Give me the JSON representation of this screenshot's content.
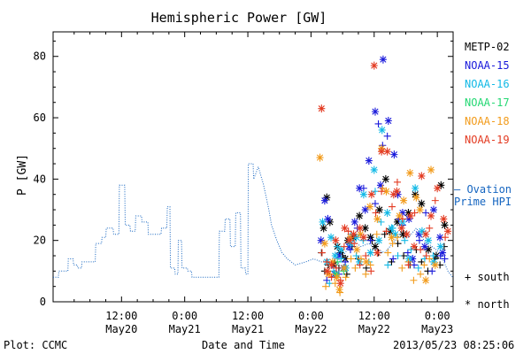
{
  "colors": {
    "METP-02": "#000000",
    "NOAA-15": "#1a1adb",
    "NOAA-16": "#12b9e6",
    "NOAA-17": "#24d873",
    "NOAA-18": "#f29b1b",
    "NOAA-19": "#e33b22",
    "ovation": "#1565c0"
  },
  "chart_data": {
    "type": "scatter",
    "title": "Hemispheric Power [GW]",
    "xlabel": "Date and Time",
    "ylabel": "P [GW]",
    "ylim": [
      0,
      88
    ],
    "xlim_hours": [
      -13,
      63
    ],
    "y_ticks": [
      0,
      20,
      40,
      60,
      80
    ],
    "x_ticks": [
      {
        "h": 0,
        "line1": "12:00",
        "line2": "May20"
      },
      {
        "h": 12,
        "line1": "0:00",
        "line2": "May21"
      },
      {
        "h": 24,
        "line1": "12:00",
        "line2": "May21"
      },
      {
        "h": 36,
        "line1": "0:00",
        "line2": "May22"
      },
      {
        "h": 48,
        "line1": "12:00",
        "line2": "May22"
      },
      {
        "h": 60,
        "line1": "0:00",
        "line2": "May23"
      }
    ],
    "legend": [
      "METP-02",
      "NOAA-15",
      "NOAA-16",
      "NOAA-17",
      "NOAA-18",
      "NOAA-19"
    ],
    "ovation_label": [
      "– Ovation",
      "Prime HPI"
    ],
    "marker_key": {
      "south": "+ south",
      "north": "* north"
    },
    "ovation_series": [
      [
        -13.0,
        8
      ],
      [
        -12.0,
        8
      ],
      [
        -11.9,
        10
      ],
      [
        -10.2,
        10
      ],
      [
        -10.1,
        14
      ],
      [
        -9.2,
        14
      ],
      [
        -9.1,
        12
      ],
      [
        -8.4,
        12
      ],
      [
        -8.3,
        11
      ],
      [
        -7.6,
        11
      ],
      [
        -7.5,
        13
      ],
      [
        -5.0,
        13
      ],
      [
        -4.9,
        19
      ],
      [
        -3.8,
        19
      ],
      [
        -3.7,
        21
      ],
      [
        -3.0,
        21
      ],
      [
        -2.9,
        24
      ],
      [
        -1.6,
        24
      ],
      [
        -1.5,
        22
      ],
      [
        -0.5,
        22
      ],
      [
        -0.4,
        38
      ],
      [
        0.6,
        38
      ],
      [
        0.7,
        25
      ],
      [
        1.6,
        25
      ],
      [
        1.7,
        23
      ],
      [
        2.6,
        23
      ],
      [
        2.7,
        28
      ],
      [
        3.8,
        28
      ],
      [
        3.9,
        26
      ],
      [
        5.0,
        26
      ],
      [
        5.1,
        22
      ],
      [
        7.5,
        22
      ],
      [
        7.6,
        24
      ],
      [
        8.6,
        24
      ],
      [
        8.7,
        31
      ],
      [
        9.2,
        31
      ],
      [
        9.3,
        11
      ],
      [
        10.1,
        11
      ],
      [
        10.2,
        9
      ],
      [
        10.7,
        9
      ],
      [
        10.8,
        20
      ],
      [
        11.4,
        20
      ],
      [
        11.5,
        11
      ],
      [
        12.5,
        11
      ],
      [
        12.6,
        10
      ],
      [
        13.3,
        10
      ],
      [
        13.4,
        8
      ],
      [
        18.5,
        8
      ],
      [
        18.6,
        23
      ],
      [
        19.6,
        23
      ],
      [
        19.7,
        27
      ],
      [
        20.6,
        27
      ],
      [
        20.7,
        18
      ],
      [
        21.6,
        18
      ],
      [
        21.7,
        29
      ],
      [
        22.6,
        29
      ],
      [
        22.7,
        11
      ],
      [
        23.5,
        11
      ],
      [
        23.6,
        9
      ],
      [
        24.0,
        9
      ],
      [
        24.1,
        45
      ],
      [
        25.0,
        45
      ],
      [
        25.1,
        40
      ],
      [
        26.0,
        44
      ],
      [
        27.0,
        38
      ],
      [
        28.0,
        30
      ],
      [
        28.5,
        25
      ],
      [
        29.5,
        20
      ],
      [
        30.5,
        16
      ],
      [
        31.5,
        14
      ],
      [
        33.0,
        12
      ],
      [
        35.0,
        13
      ],
      [
        36.5,
        14
      ],
      [
        38.0,
        13
      ],
      [
        39.5,
        14
      ],
      [
        41.0,
        12
      ],
      [
        42.5,
        16
      ],
      [
        44.0,
        20
      ],
      [
        45.5,
        18
      ],
      [
        47.0,
        19
      ],
      [
        48.5,
        17
      ],
      [
        50.0,
        16
      ],
      [
        51.5,
        19
      ],
      [
        53.0,
        22
      ],
      [
        54.5,
        21
      ],
      [
        56.0,
        24
      ],
      [
        57.5,
        20
      ],
      [
        59.0,
        18
      ],
      [
        60.5,
        16
      ],
      [
        62.0,
        10
      ],
      [
        62.9,
        8
      ]
    ],
    "points": {
      "METP-02": {
        "south": [
          [
            38.0,
            16
          ],
          [
            38.6,
            10
          ],
          [
            39.3,
            12
          ],
          [
            40.5,
            13
          ],
          [
            41.3,
            11
          ],
          [
            42.0,
            15
          ],
          [
            42.8,
            9
          ],
          [
            43.8,
            18
          ],
          [
            45.0,
            14
          ],
          [
            46.5,
            11
          ],
          [
            47.6,
            20
          ],
          [
            48.8,
            16
          ],
          [
            50.0,
            22
          ],
          [
            51.3,
            13
          ],
          [
            52.5,
            19
          ],
          [
            53.6,
            15
          ],
          [
            54.8,
            12
          ],
          [
            56.0,
            17
          ],
          [
            57.0,
            13
          ],
          [
            58.2,
            10
          ],
          [
            59.5,
            14
          ],
          [
            60.5,
            12
          ],
          [
            61.3,
            18
          ]
        ],
        "north": [
          [
            38.4,
            24
          ],
          [
            39.0,
            34
          ],
          [
            39.6,
            26
          ],
          [
            40.3,
            12
          ],
          [
            41.0,
            18
          ],
          [
            41.6,
            16
          ],
          [
            42.5,
            14
          ],
          [
            43.0,
            20
          ],
          [
            44.0,
            21
          ],
          [
            45.2,
            28
          ],
          [
            46.3,
            24
          ],
          [
            47.3,
            21
          ],
          [
            48.2,
            18
          ],
          [
            49.0,
            30
          ],
          [
            50.2,
            40
          ],
          [
            51.0,
            23
          ],
          [
            52.4,
            26
          ],
          [
            53.5,
            22
          ],
          [
            54.5,
            29
          ],
          [
            55.8,
            35
          ],
          [
            57.0,
            32
          ],
          [
            58.3,
            17
          ],
          [
            59.8,
            15
          ],
          [
            60.7,
            38
          ],
          [
            61.4,
            25
          ]
        ]
      },
      "NOAA-15": {
        "south": [
          [
            39.0,
            7
          ],
          [
            40.0,
            12
          ],
          [
            41.3,
            9
          ],
          [
            42.5,
            13
          ],
          [
            43.5,
            17
          ],
          [
            44.8,
            24
          ],
          [
            46.0,
            37
          ],
          [
            47.3,
            20
          ],
          [
            48.2,
            32
          ],
          [
            48.8,
            58
          ],
          [
            49.6,
            51
          ],
          [
            50.5,
            54
          ],
          [
            51.6,
            14
          ],
          [
            52.7,
            27
          ],
          [
            53.4,
            25
          ],
          [
            54.4,
            16
          ],
          [
            55.6,
            12
          ],
          [
            56.6,
            20
          ],
          [
            57.8,
            29
          ],
          [
            59.0,
            10
          ],
          [
            60.6,
            15
          ],
          [
            61.4,
            14
          ]
        ],
        "north": [
          [
            37.9,
            20
          ],
          [
            38.6,
            33
          ],
          [
            39.2,
            27
          ],
          [
            40.5,
            9
          ],
          [
            41.3,
            15
          ],
          [
            42.2,
            11
          ],
          [
            43.2,
            18
          ],
          [
            44.3,
            26
          ],
          [
            45.2,
            37
          ],
          [
            46.3,
            30
          ],
          [
            47.0,
            46
          ],
          [
            48.2,
            62
          ],
          [
            49.2,
            38
          ],
          [
            49.7,
            79
          ],
          [
            50.7,
            59
          ],
          [
            51.8,
            48
          ],
          [
            52.5,
            35
          ],
          [
            53.4,
            29
          ],
          [
            54.6,
            27
          ],
          [
            55.3,
            14
          ],
          [
            56.5,
            22
          ],
          [
            57.6,
            18
          ],
          [
            59.3,
            30
          ],
          [
            60.5,
            21
          ],
          [
            61.0,
            16
          ]
        ]
      },
      "NOAA-16": {
        "south": [
          [
            39.5,
            6
          ],
          [
            40.3,
            10
          ],
          [
            41.0,
            18
          ],
          [
            41.7,
            14
          ],
          [
            42.6,
            11
          ],
          [
            43.6,
            22
          ],
          [
            44.6,
            15
          ],
          [
            45.9,
            20
          ],
          [
            47.0,
            13
          ],
          [
            48.2,
            36
          ],
          [
            49.3,
            26
          ],
          [
            50.6,
            12
          ],
          [
            51.5,
            24
          ],
          [
            52.5,
            15
          ],
          [
            53.8,
            20
          ],
          [
            55.0,
            17
          ],
          [
            56.4,
            11
          ],
          [
            57.6,
            14
          ],
          [
            59.2,
            15
          ]
        ],
        "north": [
          [
            38.2,
            26
          ],
          [
            39.0,
            13
          ],
          [
            39.8,
            21
          ],
          [
            40.6,
            15
          ],
          [
            41.7,
            17
          ],
          [
            42.6,
            11
          ],
          [
            43.5,
            19
          ],
          [
            44.6,
            21
          ],
          [
            45.2,
            13
          ],
          [
            46.0,
            35
          ],
          [
            47.3,
            16
          ],
          [
            48.0,
            43
          ],
          [
            48.9,
            20
          ],
          [
            49.5,
            56
          ],
          [
            50.5,
            29
          ],
          [
            51.3,
            24
          ],
          [
            52.0,
            22
          ],
          [
            53.4,
            26
          ],
          [
            54.6,
            14
          ],
          [
            55.8,
            37
          ],
          [
            57.1,
            23
          ],
          [
            58.3,
            20
          ],
          [
            59.3,
            13
          ],
          [
            60.6,
            18
          ]
        ]
      },
      "NOAA-17": {
        "south": [
          [
            41.0,
            13
          ],
          [
            42.2,
            10
          ]
        ],
        "north": [
          [
            40.8,
            9
          ]
        ]
      },
      "NOAA-18": {
        "south": [
          [
            38.8,
            5
          ],
          [
            39.6,
            9
          ],
          [
            40.6,
            6
          ],
          [
            41.5,
            3
          ],
          [
            42.6,
            8
          ],
          [
            43.6,
            14
          ],
          [
            44.4,
            11
          ],
          [
            45.5,
            14
          ],
          [
            46.4,
            9
          ],
          [
            47.3,
            12
          ],
          [
            48.5,
            22
          ],
          [
            49.6,
            37
          ],
          [
            50.6,
            16
          ],
          [
            51.5,
            19
          ],
          [
            52.4,
            21
          ],
          [
            53.3,
            11
          ],
          [
            54.5,
            13
          ],
          [
            55.5,
            7
          ],
          [
            56.8,
            9
          ],
          [
            57.5,
            12
          ],
          [
            58.5,
            14
          ]
        ],
        "north": [
          [
            37.7,
            47
          ],
          [
            38.6,
            19
          ],
          [
            39.3,
            9
          ],
          [
            40.1,
            13
          ],
          [
            40.9,
            8
          ],
          [
            41.4,
            4
          ],
          [
            42.3,
            11
          ],
          [
            43.5,
            21
          ],
          [
            44.7,
            17
          ],
          [
            45.4,
            22
          ],
          [
            46.5,
            13
          ],
          [
            47.2,
            31
          ],
          [
            48.6,
            27
          ],
          [
            49.4,
            50
          ],
          [
            50.3,
            36
          ],
          [
            51.3,
            21
          ],
          [
            52.8,
            28
          ],
          [
            53.6,
            33
          ],
          [
            54.8,
            42
          ],
          [
            56.0,
            34
          ],
          [
            56.7,
            30
          ],
          [
            57.8,
            7
          ],
          [
            58.8,
            43
          ],
          [
            59.6,
            12
          ]
        ]
      },
      "NOAA-19": {
        "south": [
          [
            38.1,
            16
          ],
          [
            39.0,
            13
          ],
          [
            39.9,
            8
          ],
          [
            40.8,
            11
          ],
          [
            41.6,
            7
          ],
          [
            42.3,
            18
          ],
          [
            43.1,
            23
          ],
          [
            44.2,
            19
          ],
          [
            45.3,
            12
          ],
          [
            46.4,
            15
          ],
          [
            47.4,
            10
          ],
          [
            48.3,
            29
          ],
          [
            49.4,
            36
          ],
          [
            50.3,
            23
          ],
          [
            51.4,
            31
          ],
          [
            52.4,
            39
          ],
          [
            53.4,
            27
          ],
          [
            54.5,
            12
          ],
          [
            55.7,
            29
          ],
          [
            56.8,
            17
          ],
          [
            57.9,
            15
          ],
          [
            58.5,
            24
          ],
          [
            59.6,
            33
          ],
          [
            61.5,
            21
          ]
        ],
        "north": [
          [
            38.0,
            63
          ],
          [
            39.1,
            10
          ],
          [
            39.9,
            12
          ],
          [
            40.7,
            20
          ],
          [
            41.6,
            6
          ],
          [
            42.4,
            24
          ],
          [
            43.3,
            20
          ],
          [
            44.1,
            22
          ],
          [
            45.3,
            24
          ],
          [
            46.0,
            21
          ],
          [
            47.5,
            35
          ],
          [
            48.0,
            77
          ],
          [
            48.6,
            16
          ],
          [
            49.4,
            49
          ],
          [
            50.5,
            49
          ],
          [
            51.7,
            35
          ],
          [
            52.3,
            36
          ],
          [
            53.2,
            24
          ],
          [
            54.2,
            22
          ],
          [
            54.9,
            28
          ],
          [
            55.6,
            18
          ],
          [
            57.0,
            41
          ],
          [
            57.8,
            22
          ],
          [
            58.8,
            28
          ],
          [
            60.0,
            37
          ],
          [
            61.2,
            27
          ],
          [
            62.0,
            23
          ]
        ]
      }
    }
  },
  "footer": {
    "left": "Plot: CCMC",
    "right": "2013/05/23 08:25:06"
  }
}
